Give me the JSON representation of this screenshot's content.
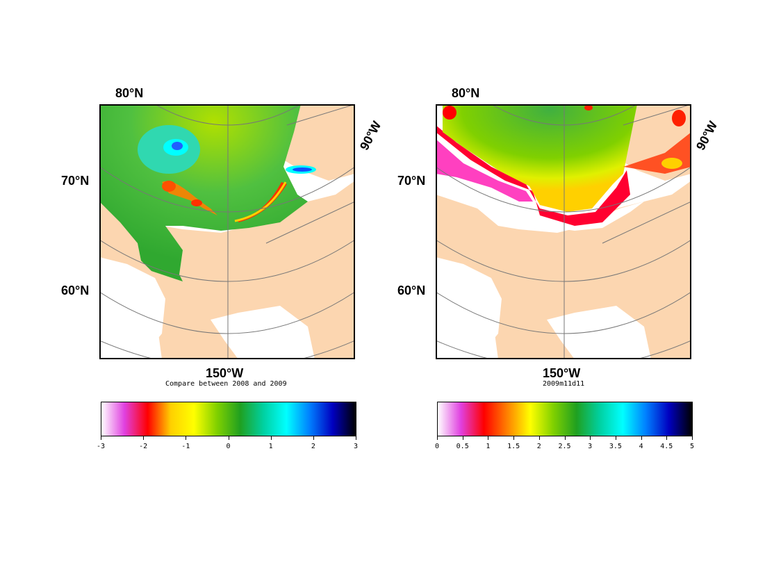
{
  "left_panel": {
    "labels": {
      "lat_80": "80°N",
      "lat_70": "70°N",
      "lat_60": "60°N",
      "lon_150": "150°W",
      "lon_90": "90°W"
    },
    "subtitle": "Compare between 2008 and 2009",
    "colorbar": {
      "ticks": [
        "-3",
        "-2",
        "-1",
        "0",
        "1",
        "2",
        "3"
      ],
      "gradient": [
        "#ffffff",
        "#e040e0",
        "#ff0000",
        "#ffd000",
        "#ffff00",
        "#80d000",
        "#20a020",
        "#00d0a0",
        "#00ffff",
        "#0080ff",
        "#0000c0",
        "#000000"
      ]
    }
  },
  "right_panel": {
    "labels": {
      "lat_80": "80°N",
      "lat_70": "70°N",
      "lat_60": "60°N",
      "lon_150": "150°W",
      "lon_90": "90°W"
    },
    "subtitle": "2009m11d11",
    "colorbar": {
      "ticks": [
        "0",
        "0.5",
        "1",
        "1.5",
        "2",
        "2.5",
        "3",
        "3.5",
        "4",
        "4.5",
        "5"
      ],
      "gradient": [
        "#ffffff",
        "#e040e0",
        "#ff0000",
        "#ff8000",
        "#ffff00",
        "#80d000",
        "#20a020",
        "#00d0a0",
        "#00ffff",
        "#0080ff",
        "#0000c0",
        "#000000"
      ]
    }
  },
  "colors": {
    "land": "#fcd6b0",
    "green": "#40b040",
    "light_green": "#a0d800",
    "ice_missing": "#ffffff",
    "grid": "#777777"
  }
}
